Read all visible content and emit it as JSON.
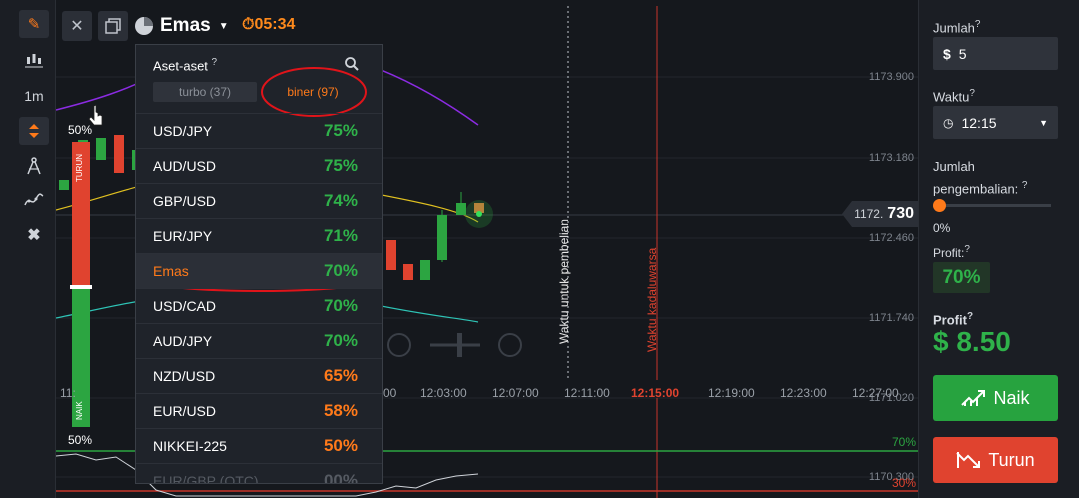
{
  "toolbar": {
    "timeframe": "1m"
  },
  "chart": {
    "asset_name": "Emas",
    "timer": "05:34",
    "price_ticks": [
      "1173.900",
      "1173.180",
      "1172.460",
      "1171.740",
      "1171.020",
      "1170.300"
    ],
    "current_price_prefix": "1172.",
    "current_price_suffix": "730",
    "time_ticks": [
      "12:03:00",
      "12:07:00",
      "12:11:00",
      "12:15:00",
      "12:19:00",
      "12:23:00",
      "12:27:00"
    ],
    "partial_time_left_1": "11:",
    "partial_time_left_2": "00",
    "purchase_line_label": "Waktu untuk pembelian",
    "expiry_line_label": "Waktu kadaluwarsa",
    "sentiment_top": "50%",
    "sentiment_bottom": "50%",
    "sentiment_down_label": "TURUN",
    "sentiment_up_label": "NAIK",
    "indicator_top_value": "70%",
    "indicator_bottom_value": "30%",
    "colors": {
      "up": "#2ca541",
      "down": "#e0432f",
      "accent": "#ff7a1a"
    }
  },
  "dropdown": {
    "title": "Aset-aset",
    "tabs": [
      {
        "label": "turbo (37)",
        "active": false
      },
      {
        "label": "biner (97)",
        "active": true
      }
    ],
    "assets": [
      {
        "name": "USD/JPY",
        "payout": "75%",
        "color": "#2fb24a",
        "selected": false
      },
      {
        "name": "AUD/USD",
        "payout": "75%",
        "color": "#2fb24a",
        "selected": false
      },
      {
        "name": "GBP/USD",
        "payout": "74%",
        "color": "#2fb24a",
        "selected": false
      },
      {
        "name": "EUR/JPY",
        "payout": "71%",
        "color": "#2fb24a",
        "selected": false
      },
      {
        "name": "Emas",
        "payout": "70%",
        "color": "#2fb24a",
        "selected": true
      },
      {
        "name": "USD/CAD",
        "payout": "70%",
        "color": "#2fb24a",
        "selected": false
      },
      {
        "name": "AUD/JPY",
        "payout": "70%",
        "color": "#2fb24a",
        "selected": false
      },
      {
        "name": "NZD/USD",
        "payout": "65%",
        "color": "#ff7a1a",
        "selected": false
      },
      {
        "name": "EUR/USD",
        "payout": "58%",
        "color": "#ff7a1a",
        "selected": false
      },
      {
        "name": "NIKKEI-225",
        "payout": "50%",
        "color": "#ff7a1a",
        "selected": false
      },
      {
        "name": "EUR/GBP (OTC)",
        "payout": "00%",
        "color": "#555a62",
        "selected": false
      }
    ]
  },
  "panel": {
    "amount_label": "Jumlah",
    "amount_currency": "$",
    "amount_value": "5",
    "time_label": "Waktu",
    "time_value": "12:15",
    "return_label_1": "Jumlah",
    "return_label_2": "pengembalian:",
    "return_value": "0%",
    "profit_pct_label": "Profit:",
    "profit_pct_value": "70%",
    "profit_label": "Profit",
    "profit_value": "$ 8.50",
    "up_button": "Naik",
    "down_button": "Turun"
  }
}
